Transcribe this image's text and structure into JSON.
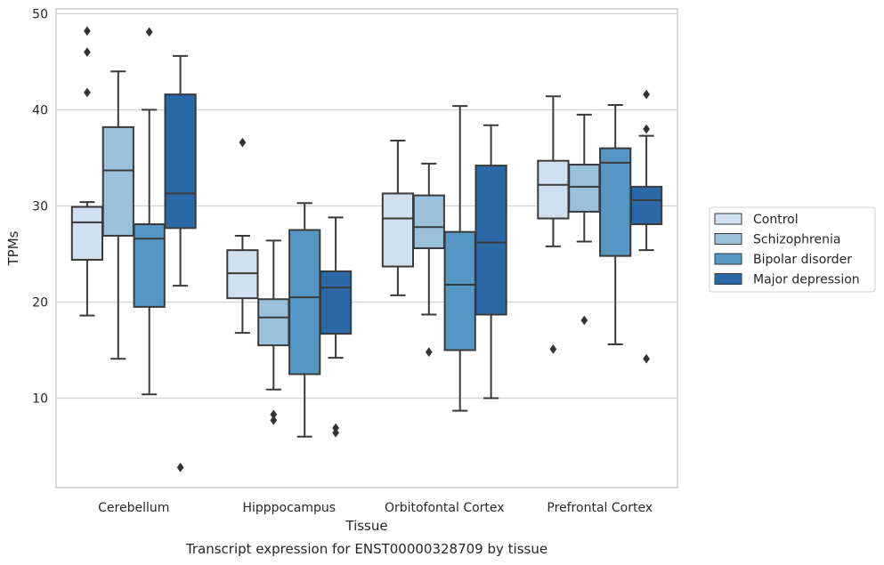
{
  "chart_data": {
    "type": "box",
    "title": "Transcript expression for ENST00000328709 by tissue",
    "xlabel": "Tissue",
    "ylabel": "TPMs",
    "ylim": [
      0.7,
      50.5
    ],
    "yticks": [
      10,
      20,
      30,
      40,
      50
    ],
    "grid": "horizontal",
    "legend_position": "center-right",
    "categories": [
      "Cerebellum",
      "Hipppocampus",
      "Orbitofontal Cortex",
      "Prefrontal Cortex"
    ],
    "series": [
      {
        "name": "Control",
        "color": "#d0e0f0",
        "boxes": [
          {
            "whisker_low": 18.6,
            "q1": 24.4,
            "median": 28.3,
            "q3": 29.9,
            "whisker_high": 30.4,
            "outliers": [
              41.8,
              46.0,
              48.2
            ]
          },
          {
            "whisker_low": 16.8,
            "q1": 20.4,
            "median": 23.0,
            "q3": 25.4,
            "whisker_high": 26.9,
            "outliers": [
              36.6
            ]
          },
          {
            "whisker_low": 20.7,
            "q1": 23.7,
            "median": 28.7,
            "q3": 31.3,
            "whisker_high": 36.8,
            "outliers": []
          },
          {
            "whisker_low": 25.8,
            "q1": 28.7,
            "median": 32.2,
            "q3": 34.7,
            "whisker_high": 41.4,
            "outliers": [
              15.1
            ]
          }
        ]
      },
      {
        "name": "Schizophrenia",
        "color": "#99c1dc",
        "boxes": [
          {
            "whisker_low": 14.1,
            "q1": 26.9,
            "median": 33.7,
            "q3": 38.2,
            "whisker_high": 44.0,
            "outliers": []
          },
          {
            "whisker_low": 10.9,
            "q1": 15.5,
            "median": 18.4,
            "q3": 20.3,
            "whisker_high": 26.4,
            "outliers": [
              8.3,
              7.7
            ]
          },
          {
            "whisker_low": 18.7,
            "q1": 25.6,
            "median": 27.8,
            "q3": 31.1,
            "whisker_high": 34.4,
            "outliers": [
              14.8
            ]
          },
          {
            "whisker_low": 26.3,
            "q1": 29.4,
            "median": 32.0,
            "q3": 34.3,
            "whisker_high": 39.5,
            "outliers": [
              18.1
            ]
          }
        ]
      },
      {
        "name": "Bipolar disorder",
        "color": "#5597c4",
        "boxes": [
          {
            "whisker_low": 10.4,
            "q1": 19.5,
            "median": 26.6,
            "q3": 28.1,
            "whisker_high": 40.0,
            "outliers": [
              48.1
            ]
          },
          {
            "whisker_low": 6.0,
            "q1": 12.5,
            "median": 20.5,
            "q3": 27.5,
            "whisker_high": 30.3,
            "outliers": []
          },
          {
            "whisker_low": 8.7,
            "q1": 15.0,
            "median": 21.8,
            "q3": 27.3,
            "whisker_high": 40.4,
            "outliers": []
          },
          {
            "whisker_low": 15.6,
            "q1": 24.8,
            "median": 34.5,
            "q3": 36.0,
            "whisker_high": 40.5,
            "outliers": []
          }
        ]
      },
      {
        "name": "Major depression",
        "color": "#2b68a8",
        "boxes": [
          {
            "whisker_low": 21.7,
            "q1": 27.7,
            "median": 31.3,
            "q3": 41.6,
            "whisker_high": 45.6,
            "outliers": [
              2.8
            ]
          },
          {
            "whisker_low": 14.2,
            "q1": 16.7,
            "median": 21.5,
            "q3": 23.2,
            "whisker_high": 28.8,
            "outliers": [
              6.9,
              6.4
            ]
          },
          {
            "whisker_low": 10.0,
            "q1": 18.7,
            "median": 26.2,
            "q3": 34.2,
            "whisker_high": 38.4,
            "outliers": []
          },
          {
            "whisker_low": 25.4,
            "q1": 28.1,
            "median": 30.6,
            "q3": 32.0,
            "whisker_high": 37.3,
            "outliers": [
              41.6,
              38.0,
              14.1
            ]
          }
        ]
      }
    ]
  }
}
